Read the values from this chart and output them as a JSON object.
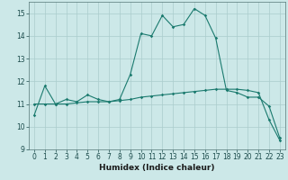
{
  "xlabel": "Humidex (Indice chaleur)",
  "line1_x": [
    0,
    1,
    2,
    3,
    4,
    5,
    6,
    7,
    8,
    9,
    10,
    11,
    12,
    13,
    14,
    15,
    16,
    17,
    18,
    19,
    20,
    21,
    22,
    23
  ],
  "line1_y": [
    10.5,
    11.8,
    11.0,
    11.2,
    11.1,
    11.4,
    11.2,
    11.1,
    11.2,
    12.3,
    14.1,
    14.0,
    14.9,
    14.4,
    14.5,
    15.2,
    14.9,
    13.9,
    11.6,
    11.5,
    11.3,
    11.3,
    10.9,
    9.5
  ],
  "line2_x": [
    0,
    1,
    2,
    3,
    4,
    5,
    6,
    7,
    8,
    9,
    10,
    11,
    12,
    13,
    14,
    15,
    16,
    17,
    18,
    19,
    20,
    21,
    22,
    23
  ],
  "line2_y": [
    11.0,
    11.0,
    11.0,
    11.0,
    11.05,
    11.1,
    11.1,
    11.1,
    11.15,
    11.2,
    11.3,
    11.35,
    11.4,
    11.45,
    11.5,
    11.55,
    11.6,
    11.65,
    11.65,
    11.65,
    11.6,
    11.5,
    10.3,
    9.4
  ],
  "line_color": "#1a7a6e",
  "bg_color": "#cce8e8",
  "grid_color": "#aacccc",
  "ylim": [
    9,
    15.5
  ],
  "xlim": [
    -0.5,
    23.5
  ],
  "yticks": [
    9,
    10,
    11,
    12,
    13,
    14,
    15
  ],
  "xticks": [
    0,
    1,
    2,
    3,
    4,
    5,
    6,
    7,
    8,
    9,
    10,
    11,
    12,
    13,
    14,
    15,
    16,
    17,
    18,
    19,
    20,
    21,
    22,
    23
  ],
  "tick_labelsize": 5.5,
  "xlabel_fontsize": 6.5
}
